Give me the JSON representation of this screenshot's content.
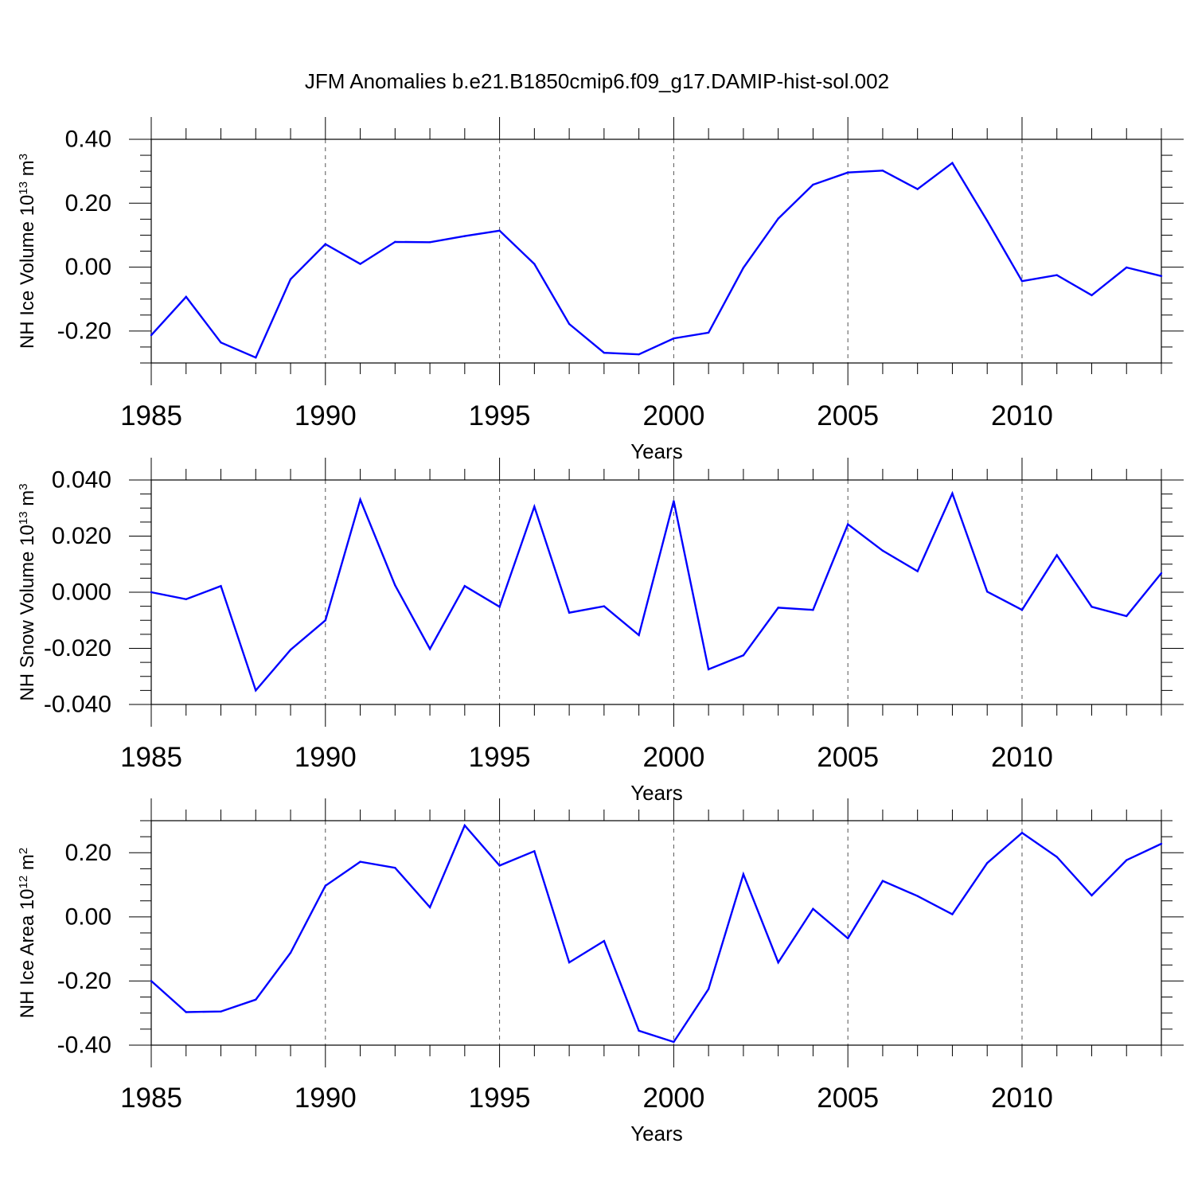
{
  "figure_title": "JFM Anomalies b.e21.B1850cmip6.f09_g17.DAMIP-hist-sol.002",
  "colors": {
    "line": "#0000ff",
    "axes": "#000000",
    "grid": "#555555"
  },
  "chart_data": [
    {
      "type": "line",
      "ylabel": {
        "text": "NH Ice Volume 10",
        "sup": "13",
        "unit": " m",
        "sup2": "3"
      },
      "xlabel": "Years",
      "xlim": [
        1985,
        2014
      ],
      "ylim": [
        -0.3,
        0.4
      ],
      "xticks": [
        1985,
        1990,
        1995,
        2000,
        2005,
        2010
      ],
      "yticks": [
        -0.2,
        0.0,
        0.2,
        0.4
      ],
      "ytick_labels": [
        "-0.20",
        "0.00",
        "0.20",
        "0.40"
      ],
      "x": [
        1985,
        1986,
        1987,
        1988,
        1989,
        1990,
        1991,
        1992,
        1993,
        1994,
        1995,
        1996,
        1997,
        1998,
        1999,
        2000,
        2001,
        2002,
        2003,
        2004,
        2005,
        2006,
        2007,
        2008,
        2009,
        2010,
        2011,
        2012,
        2013,
        2014
      ],
      "values": [
        -0.213,
        -0.093,
        -0.236,
        -0.283,
        -0.038,
        0.072,
        0.01,
        0.079,
        0.078,
        0.097,
        0.114,
        0.01,
        -0.178,
        -0.268,
        -0.273,
        -0.223,
        -0.205,
        -0.002,
        0.152,
        0.258,
        0.296,
        0.302,
        0.244,
        0.326,
        0.145,
        -0.044,
        -0.025,
        -0.088,
        -0.001,
        -0.028
      ]
    },
    {
      "type": "line",
      "ylabel": {
        "text": "NH Snow Volume 10",
        "sup": "13",
        "unit": " m",
        "sup2": "3"
      },
      "xlabel": "Years",
      "xlim": [
        1985,
        2014
      ],
      "ylim": [
        -0.04,
        0.04
      ],
      "xticks": [
        1985,
        1990,
        1995,
        2000,
        2005,
        2010
      ],
      "yticks": [
        -0.04,
        -0.02,
        0.0,
        0.02,
        0.04
      ],
      "ytick_labels": [
        "-0.040",
        "-0.020",
        "0.000",
        "0.020",
        "0.040"
      ],
      "x": [
        1985,
        1986,
        1987,
        1988,
        1989,
        1990,
        1991,
        1992,
        1993,
        1994,
        1995,
        1996,
        1997,
        1998,
        1999,
        2000,
        2001,
        2002,
        2003,
        2004,
        2005,
        2006,
        2007,
        2008,
        2009,
        2010,
        2011,
        2012,
        2013,
        2014
      ],
      "values": [
        0.0,
        -0.0025,
        0.0022,
        -0.035,
        -0.0205,
        -0.01,
        0.033,
        0.0025,
        -0.0202,
        0.0022,
        -0.0052,
        0.0305,
        -0.0073,
        -0.005,
        -0.0153,
        0.0325,
        -0.0275,
        -0.0225,
        -0.0055,
        -0.0063,
        0.0242,
        0.0148,
        0.0075,
        0.0352,
        0.0002,
        -0.0063,
        0.0132,
        -0.0052,
        -0.0085,
        0.0068
      ]
    },
    {
      "type": "line",
      "ylabel": {
        "text": "NH Ice Area 10",
        "sup": "12",
        "unit": " m",
        "sup2": "2"
      },
      "xlabel": "Years",
      "xlim": [
        1985,
        2014
      ],
      "ylim": [
        -0.4,
        0.3
      ],
      "xticks": [
        1985,
        1990,
        1995,
        2000,
        2005,
        2010
      ],
      "yticks": [
        -0.4,
        -0.2,
        0.0,
        0.2
      ],
      "ytick_labels": [
        "-0.40",
        "-0.20",
        "0.00",
        "0.20"
      ],
      "x": [
        1985,
        1986,
        1987,
        1988,
        1989,
        1990,
        1991,
        1992,
        1993,
        1994,
        1995,
        1996,
        1997,
        1998,
        1999,
        2000,
        2001,
        2002,
        2003,
        2004,
        2005,
        2006,
        2007,
        2008,
        2009,
        2010,
        2011,
        2012,
        2013,
        2014
      ],
      "values": [
        -0.2,
        -0.297,
        -0.295,
        -0.258,
        -0.112,
        0.097,
        0.172,
        0.153,
        0.03,
        0.285,
        0.16,
        0.205,
        -0.142,
        -0.075,
        -0.355,
        -0.39,
        -0.225,
        0.133,
        -0.142,
        0.025,
        -0.067,
        0.112,
        0.065,
        0.008,
        0.168,
        0.262,
        0.187,
        0.067,
        0.177,
        0.228
      ]
    }
  ]
}
